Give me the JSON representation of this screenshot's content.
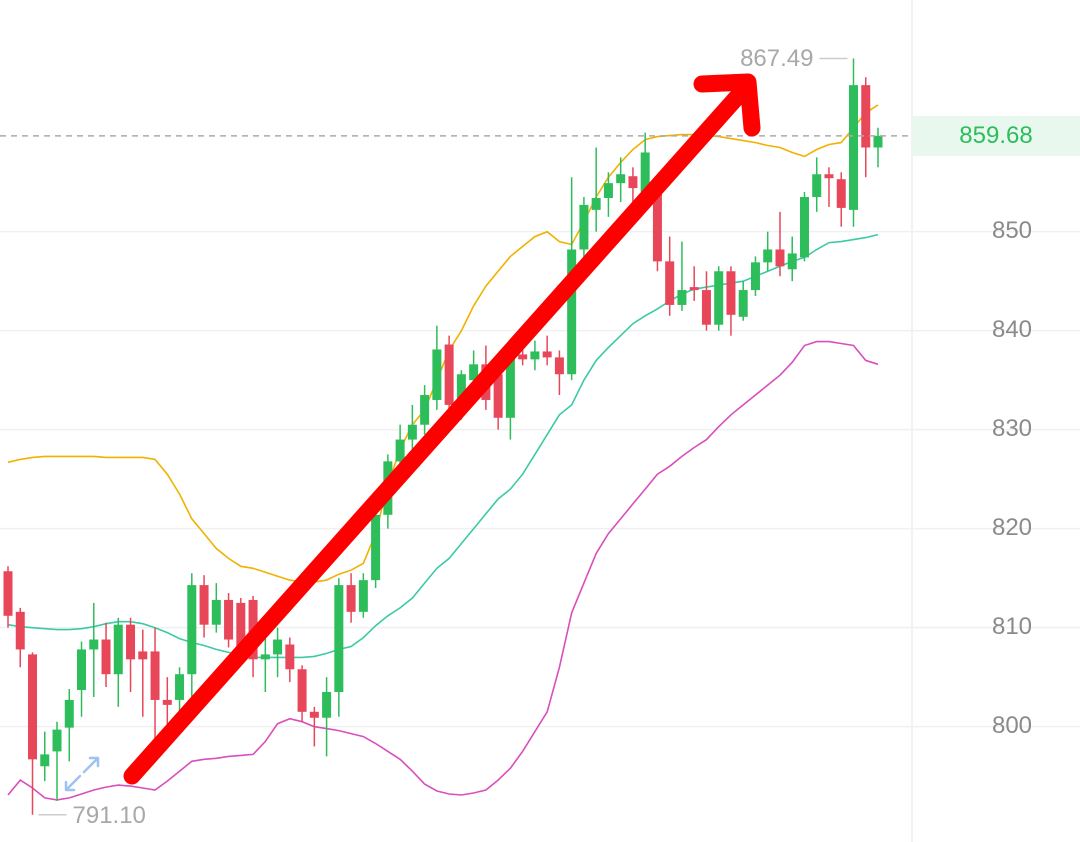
{
  "chart_data": {
    "type": "candlestick",
    "up_color": "#2dbd5a",
    "down_color": "#e8475a",
    "open": [
      815.7,
      811.6,
      807.3,
      796.0,
      797.5,
      799.9,
      803.7,
      807.8,
      808.8,
      805.3,
      810.3,
      807.6,
      807.6,
      802.7,
      802.7,
      805.3,
      814.3,
      810.3,
      812.8,
      812.5,
      812.8,
      806.8,
      807.3,
      808.3,
      805.8,
      801.5,
      800.9,
      803.5,
      814.3,
      811.6,
      814.8,
      821.4,
      826.8,
      829.0,
      830.5,
      833.0,
      838.6,
      832.5,
      835.0,
      836.6,
      835.6,
      831.2,
      837.6,
      837.1,
      837.9,
      837.3,
      835.6,
      848.2,
      852.2,
      853.4,
      854.9,
      855.6,
      854.0,
      854.2,
      847.0,
      842.6,
      844.4,
      844.1,
      840.6,
      846.0,
      841.4,
      844.1,
      846.9,
      848.2,
      846.2,
      847.4,
      853.5,
      855.8,
      855.3,
      852.2,
      864.8,
      858.5
    ],
    "high": [
      816.2,
      812.0,
      807.5,
      799.5,
      800.5,
      803.8,
      808.6,
      812.5,
      810.5,
      811.0,
      811.0,
      809.8,
      810.0,
      805.0,
      806.0,
      815.5,
      815.3,
      814.5,
      813.5,
      813.0,
      813.2,
      809.0,
      810.0,
      809.0,
      806.2,
      802.0,
      805.0,
      815.0,
      815.5,
      815.5,
      822.5,
      827.5,
      830.5,
      832.5,
      834.5,
      840.5,
      839.5,
      836.0,
      838.0,
      838.5,
      837.5,
      838.5,
      840.0,
      839.0,
      839.5,
      838.0,
      855.5,
      853.5,
      858.5,
      856.0,
      857.5,
      856.5,
      860.0,
      855.0,
      849.5,
      849.0,
      846.5,
      846.0,
      846.5,
      846.5,
      845.0,
      847.5,
      850.0,
      852.0,
      849.5,
      854.0,
      857.5,
      856.5,
      856.0,
      867.49,
      865.6,
      860.5
    ],
    "low": [
      810.0,
      806.0,
      791.1,
      794.5,
      792.5,
      796.5,
      801.0,
      803.0,
      804.0,
      802.0,
      803.5,
      801.0,
      798.0,
      800.0,
      801.5,
      803.0,
      809.0,
      809.5,
      808.0,
      806.5,
      805.0,
      803.5,
      805.0,
      804.5,
      800.5,
      798.0,
      797.0,
      801.0,
      810.5,
      811.0,
      814.0,
      820.0,
      825.5,
      828.0,
      829.5,
      832.0,
      831.5,
      831.0,
      834.0,
      832.0,
      830.0,
      829.0,
      836.5,
      836.0,
      836.5,
      833.5,
      835.0,
      846.5,
      850.0,
      851.5,
      853.0,
      852.0,
      852.5,
      846.0,
      841.5,
      842.0,
      843.0,
      840.0,
      840.0,
      839.5,
      841.0,
      843.5,
      846.0,
      845.5,
      845.0,
      847.0,
      852.0,
      852.5,
      850.5,
      850.5,
      855.5,
      856.5
    ],
    "close": [
      811.2,
      807.8,
      796.7,
      797.2,
      799.7,
      802.7,
      807.8,
      808.8,
      805.3,
      810.3,
      806.8,
      806.8,
      802.7,
      802.2,
      805.3,
      814.3,
      810.3,
      812.8,
      808.8,
      808.0,
      806.8,
      807.3,
      808.8,
      805.8,
      801.5,
      800.9,
      803.5,
      814.3,
      811.6,
      814.8,
      821.4,
      826.8,
      829.0,
      830.5,
      833.5,
      838.1,
      832.5,
      835.6,
      836.6,
      833.0,
      831.2,
      838.1,
      837.1,
      837.9,
      837.3,
      835.6,
      848.2,
      852.7,
      853.4,
      854.9,
      855.8,
      854.4,
      858.0,
      847.0,
      842.6,
      844.1,
      844.1,
      840.6,
      846.0,
      841.6,
      844.1,
      846.9,
      848.2,
      846.5,
      847.8,
      853.5,
      855.8,
      855.4,
      852.4,
      864.8,
      858.5,
      859.68
    ],
    "bands": [
      {
        "color": "#f2b100",
        "values": [
          826.7,
          827.0,
          827.2,
          827.3,
          827.3,
          827.3,
          827.3,
          827.3,
          827.2,
          827.2,
          827.2,
          827.2,
          827.0,
          825.5,
          823.5,
          821.0,
          819.5,
          818.0,
          817.0,
          816.2,
          816.0,
          815.6,
          815.2,
          814.8,
          814.6,
          814.6,
          814.8,
          815.4,
          815.8,
          816.5,
          819.5,
          824.5,
          828.0,
          830.5,
          832.0,
          835.0,
          838.0,
          840.0,
          842.5,
          844.5,
          846.0,
          847.5,
          848.5,
          849.5,
          850.0,
          849.0,
          848.7,
          851.0,
          853.5,
          855.5,
          857.0,
          858.3,
          859.3,
          859.6,
          859.7,
          859.8,
          859.8,
          859.7,
          859.6,
          859.4,
          859.2,
          859.0,
          858.7,
          858.5,
          858.0,
          857.6,
          858.3,
          858.8,
          859.0,
          860.5,
          862.0,
          862.8
        ]
      },
      {
        "color": "#3cc9a6",
        "values": [
          810.3,
          810.1,
          810.0,
          809.9,
          809.8,
          809.8,
          809.9,
          810.1,
          810.4,
          810.6,
          810.6,
          810.4,
          810.0,
          809.5,
          808.9,
          808.5,
          808.2,
          807.8,
          807.5,
          807.2,
          807.0,
          807.0,
          807.0,
          807.0,
          807.0,
          807.1,
          807.4,
          807.8,
          808.1,
          809.0,
          810.2,
          811.2,
          812.0,
          813.0,
          814.5,
          816.0,
          817.0,
          818.5,
          820.0,
          821.5,
          823.0,
          824.0,
          825.5,
          827.5,
          829.5,
          831.5,
          832.5,
          835.0,
          837.0,
          838.3,
          839.5,
          840.7,
          841.5,
          842.2,
          843.0,
          843.7,
          844.2,
          844.4,
          844.6,
          844.8,
          845.0,
          845.5,
          846.0,
          846.5,
          847.0,
          847.4,
          848.2,
          848.9,
          849.0,
          849.2,
          849.4,
          849.7
        ]
      },
      {
        "color": "#d94fbb",
        "values": [
          793.1,
          794.6,
          793.8,
          792.8,
          792.6,
          792.8,
          793.2,
          793.6,
          793.9,
          794.1,
          794.0,
          793.8,
          793.6,
          794.5,
          795.5,
          796.5,
          796.7,
          796.8,
          797.0,
          797.1,
          797.2,
          798.5,
          800.3,
          800.8,
          800.5,
          800.0,
          799.8,
          799.6,
          799.3,
          799.0,
          798.3,
          797.5,
          796.7,
          795.5,
          794.2,
          793.5,
          793.2,
          793.1,
          793.3,
          793.6,
          794.6,
          795.8,
          797.5,
          799.5,
          801.5,
          806.0,
          811.5,
          814.5,
          817.5,
          819.5,
          821.0,
          822.5,
          824.0,
          825.5,
          826.3,
          827.3,
          828.2,
          829.0,
          830.3,
          831.5,
          832.5,
          833.5,
          834.5,
          835.5,
          836.8,
          838.5,
          838.9,
          838.9,
          838.7,
          838.5,
          837.0,
          836.6
        ]
      }
    ],
    "ylim": [
      788.35,
      873.4
    ],
    "yticks": [
      800,
      810,
      820,
      830,
      840,
      850
    ],
    "grid": true,
    "last_price": 859.68,
    "high_label": {
      "value": 867.49,
      "label": "867.49"
    },
    "low_label": {
      "value": 791.1,
      "label": "791.10"
    }
  }
}
